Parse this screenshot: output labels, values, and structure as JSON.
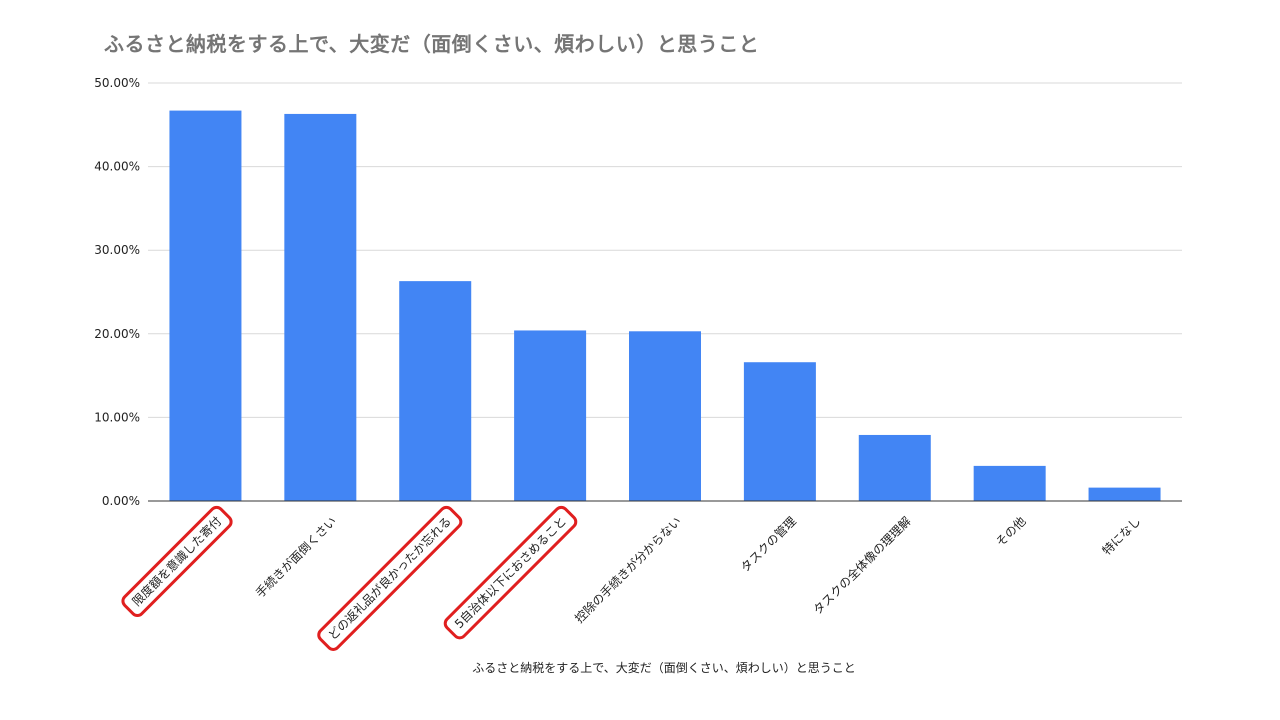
{
  "chart_data": {
    "type": "bar",
    "title": "ふるさと納税をする上で、大変だ（面倒くさい、煩わしい）と思うこと",
    "xlabel": "ふるさと納税をする上で、大変だ（面倒くさい、煩わしい）と思うこと",
    "ylabel": "",
    "ylim": [
      0,
      50
    ],
    "yticks": [
      "0.00%",
      "10.00%",
      "20.00%",
      "30.00%",
      "40.00%",
      "50.00%"
    ],
    "categories": [
      "限度額を意識した寄付",
      "手続きが面倒くさい",
      "どの返礼品が良かったか忘れる",
      "5自治体以下におさめること",
      "控除の手続きが分からない",
      "タスクの管理",
      "タスクの全体像の理理解",
      "その他",
      "特になし"
    ],
    "values": [
      46.7,
      46.3,
      26.3,
      20.4,
      20.3,
      16.6,
      7.9,
      4.2,
      1.6
    ],
    "highlighted": [
      true,
      false,
      true,
      true,
      false,
      false,
      false,
      false,
      false
    ],
    "bar_color": "#4285f4",
    "highlight_color": "#e01f1f",
    "grid": true
  }
}
